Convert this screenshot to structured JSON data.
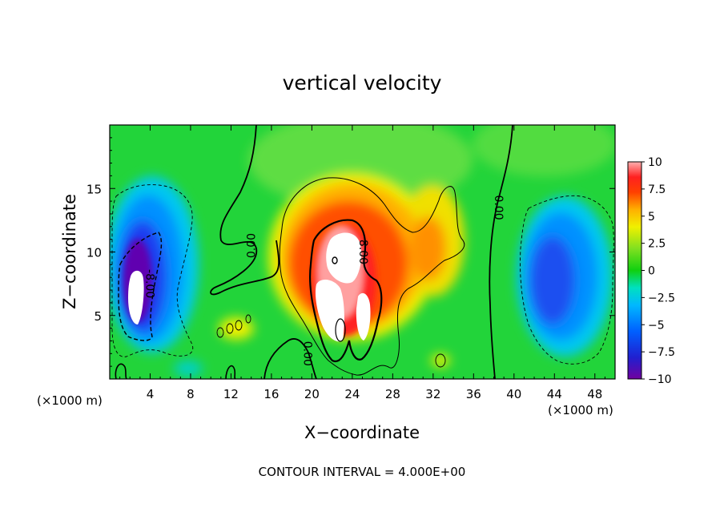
{
  "chart_data": {
    "type": "heatmap",
    "title": "vertical velocity",
    "xlabel": "X−coordinate",
    "ylabel": "Z−coordinate",
    "x_unit": "(×1000 m)",
    "x_unit_right": "(×1000 m)",
    "xlim": [
      0,
      50
    ],
    "ylim": [
      0,
      20
    ],
    "x_ticks": [
      4,
      8,
      12,
      16,
      20,
      24,
      28,
      32,
      36,
      40,
      44,
      48
    ],
    "y_ticks": [
      5,
      10,
      15
    ],
    "colorbar": {
      "vmin": -10,
      "vmax": 10,
      "ticks": [
        10,
        7.5,
        5,
        2.5,
        0,
        -2.5,
        -5,
        -7.5,
        -10
      ],
      "tick_labels": [
        "10",
        "7.5",
        "5",
        "2.5",
        "0",
        "−2.5",
        "−5",
        "−7.5",
        "−10"
      ]
    },
    "contour_labels": [
      {
        "text": "0.00",
        "x": 14.0,
        "z": 10.5,
        "angle": -90
      },
      {
        "text": "0.00",
        "x": 38.5,
        "z": 13.5,
        "angle": 90
      },
      {
        "text": "0.00",
        "x": 19.6,
        "z": 2.0,
        "angle": 90
      },
      {
        "text": "8.00",
        "x": 25.1,
        "z": 10.0,
        "angle": 90
      },
      {
        "text": "-8.00",
        "x": 4.0,
        "z": 7.5,
        "angle": 90
      }
    ],
    "features": [
      {
        "kind": "updraft",
        "x": 24,
        "z": 9,
        "w": 9
      },
      {
        "kind": "downdraft",
        "x": 3,
        "z": 8,
        "w": -10
      },
      {
        "kind": "downdraft",
        "x": 45,
        "z": 8,
        "w": -7
      }
    ],
    "footer": "CONTOUR INTERVAL = 4.000E+00"
  }
}
